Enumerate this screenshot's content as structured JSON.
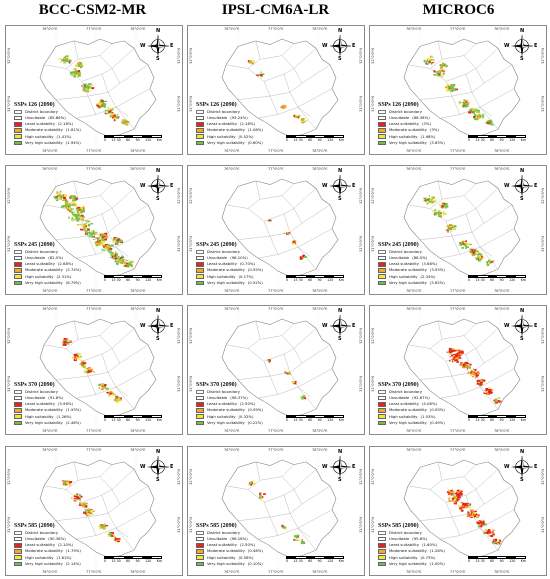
{
  "columns": [
    "BCC-CSM2-MR",
    "IPSL-CM6A-LR",
    "MICROC6"
  ],
  "colors": {
    "boundary_fill": "#ffffff",
    "unsuitable": "#ffffff",
    "least": "#e8231b",
    "moderate": "#f5a623",
    "high": "#f3e63a",
    "very_high": "#6cc24a",
    "outline": "#7f7f7f"
  },
  "tick_labels": {
    "top": [
      "76°0'0\"E",
      "77°0'0\"E",
      "78°0'0\"E"
    ],
    "left": [
      "32°0'0\"N",
      "31°0'0\"N"
    ]
  },
  "compass_letters": {
    "n": "N",
    "s": "S",
    "e": "E",
    "w": "W"
  },
  "legend_labels": {
    "boundary": "District boundary",
    "unsuitable": "Unsuitable",
    "least": "Least suitability",
    "moderate": "Moderate suitability",
    "high": "High suitability",
    "very_high": "Very high suitability"
  },
  "scale_labels": [
    "0",
    "15 30",
    "60",
    "90",
    "120"
  ],
  "scale_unit": "Km",
  "panels": [
    {
      "ssp": "SSPs 126 (2090)",
      "model": "BCC-CSM2-MR",
      "values": [
        "85.86%",
        "2.18%",
        "1.61%",
        "1.41%",
        "1.94%"
      ],
      "coverage": "high"
    },
    {
      "ssp": "SSPs 126 (2090)",
      "model": "IPSL-CM6A-LR",
      "values": [
        "95.24%",
        "2.18%",
        "1.06%",
        "0.52%",
        "0.60%"
      ],
      "coverage": "low"
    },
    {
      "ssp": "SSPs 126 (2090)",
      "model": "MICROC6",
      "values": [
        "88.38%",
        "3%",
        "3%",
        "1.98%",
        "3.63%"
      ],
      "coverage": "high"
    },
    {
      "ssp": "SSPs 245 (2090)",
      "model": "BCC-CSM2-MR",
      "values": [
        "82.5%",
        "2.68%",
        "2.74%",
        "2.31%",
        "6.79%"
      ],
      "coverage": "very_high"
    },
    {
      "ssp": "SSPs 245 (2090)",
      "model": "IPSL-CM6A-LR",
      "values": [
        "98.10%",
        "0.70%",
        "0.55%",
        "0.17%",
        "0.52%"
      ],
      "coverage": "very_low"
    },
    {
      "ssp": "SSPs 245 (2090)",
      "model": "MICROC6",
      "values": [
        "88.5%",
        "3.68%",
        "3.55%",
        "2.34%",
        "3.62%"
      ],
      "coverage": "high"
    },
    {
      "ssp": "SSPs 370 (2090)",
      "model": "BCC-CSM2-MR",
      "values": [
        "91.8%",
        "3.96%",
        "1.93%",
        "1.26%",
        "2.46%"
      ],
      "coverage": "medium"
    },
    {
      "ssp": "SSPs 370 (2090)",
      "model": "IPSL-CM6A-LR",
      "values": [
        "96.37%",
        "2.50%",
        "0.59%",
        "0.32%",
        "0.22%"
      ],
      "coverage": "very_low"
    },
    {
      "ssp": "SSPs 370 (2090)",
      "model": "MICROC6",
      "values": [
        "92.67%",
        "4.08%",
        "0.93%",
        "1.03%",
        "0.49%"
      ],
      "coverage": "medium_red"
    },
    {
      "ssp": "SSPs 585 (2090)",
      "model": "BCC-CSM2-MR",
      "values": [
        "90.36%",
        "2.10%",
        "1.79%",
        "1.61%",
        "2.14%"
      ],
      "coverage": "medium"
    },
    {
      "ssp": "SSPs 585 (2090)",
      "model": "IPSL-CM6A-LR",
      "values": [
        "96.16%",
        "2.50%",
        "0.46%",
        "0.56%",
        "0.10%"
      ],
      "coverage": "low"
    },
    {
      "ssp": "SSPs 585 (2090)",
      "model": "MICROC6",
      "values": [
        "95.6%",
        "1.60%",
        "1.28%",
        "0.73%",
        "1.00%"
      ],
      "coverage": "medium_red"
    }
  ]
}
